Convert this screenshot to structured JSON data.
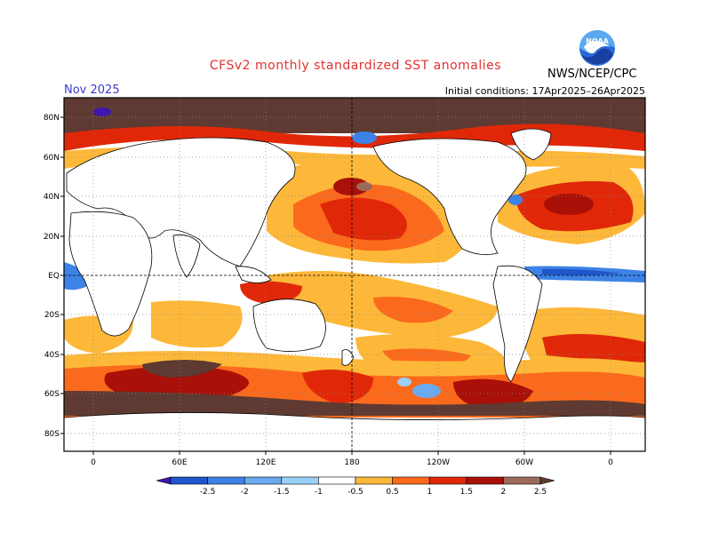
{
  "title": "CFSv2 monthly standardized SST anomalies",
  "month_label": "Nov 2025",
  "initial_conditions": "Initial conditions: 17Apr2025–26Apr2025",
  "agency": "NWS/NCEP/CPC",
  "logo_text": "NOAA",
  "lat_labels": [
    "80N",
    "60N",
    "40N",
    "20N",
    "EQ",
    "20S",
    "40S",
    "60S",
    "80S"
  ],
  "lon_labels": [
    "0",
    "60E",
    "120E",
    "180",
    "120W",
    "60W",
    "0"
  ],
  "colorbar": {
    "ticks": [
      "-2.5",
      "-2",
      "-1.5",
      "-1",
      "-0.5",
      "0.5",
      "1",
      "1.5",
      "2",
      "2.5"
    ],
    "colors": [
      "#3c18b0",
      "#1f56cc",
      "#3d82e6",
      "#6aaaf0",
      "#9ad0f8",
      "#ffffff",
      "#fdb83a",
      "#fb6a1c",
      "#e02808",
      "#a81008",
      "#9c6a5a",
      "#5e3a32"
    ]
  }
}
